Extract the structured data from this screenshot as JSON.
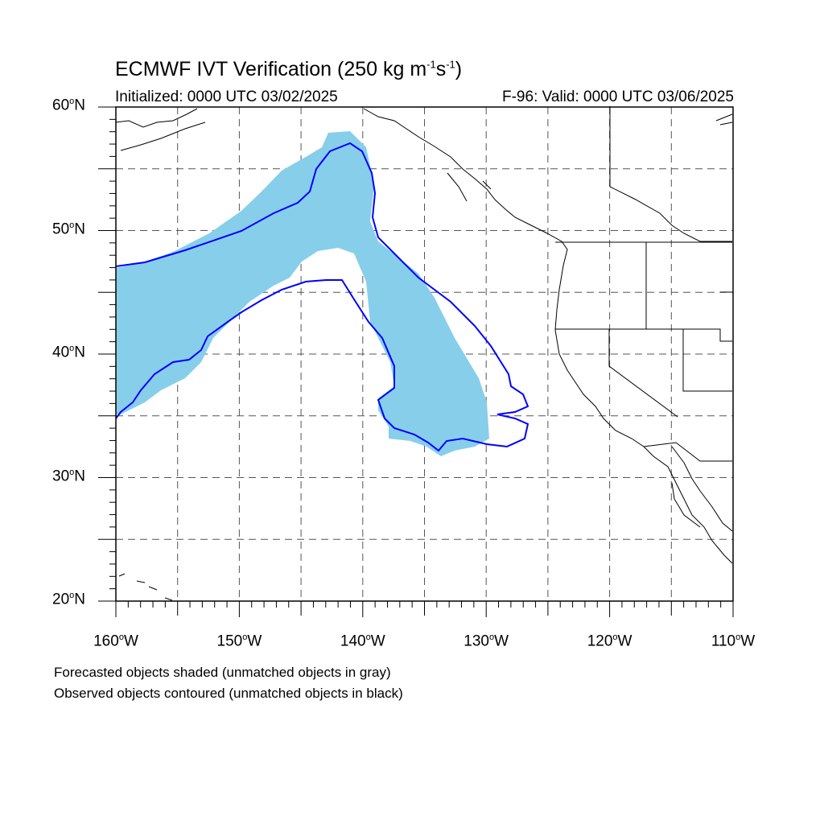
{
  "title": {
    "main": "ECMWF IVT Verification (250 kg m",
    "sup1": "-1",
    "mid": "s",
    "sup2": "-1",
    "end": ")"
  },
  "subtitle_left": "Initialized: 0000 UTC 03/02/2025",
  "subtitle_right": "F-96: Valid: 0000 UTC 03/06/2025",
  "map": {
    "lon_range": [
      -160,
      -110
    ],
    "lat_range": [
      20,
      60
    ],
    "lat_labels": [
      {
        "lat": 60,
        "text": "60",
        "suffix": "N"
      },
      {
        "lat": 50,
        "text": "50",
        "suffix": "N"
      },
      {
        "lat": 40,
        "text": "40",
        "suffix": "N"
      },
      {
        "lat": 30,
        "text": "30",
        "suffix": "N"
      },
      {
        "lat": 20,
        "text": "20",
        "suffix": "N"
      }
    ],
    "lon_labels": [
      {
        "lon": -160,
        "text": "160",
        "suffix": "W"
      },
      {
        "lon": -150,
        "text": "150",
        "suffix": "W"
      },
      {
        "lon": -140,
        "text": "140",
        "suffix": "W"
      },
      {
        "lon": -130,
        "text": "130",
        "suffix": "W"
      },
      {
        "lon": -120,
        "text": "120",
        "suffix": "W"
      },
      {
        "lon": -110,
        "text": "110",
        "suffix": "W"
      }
    ],
    "grid_lons": [
      -155,
      -150,
      -145,
      -140,
      -135,
      -130,
      -125,
      -120,
      -115
    ],
    "grid_lats": [
      25,
      30,
      35,
      40,
      45,
      50,
      55
    ],
    "shade_color": "#87ceeb",
    "contour_color": "#0000ff"
  },
  "notes": [
    "Forecasted objects shaded (unmatched objects in gray)",
    "Observed objects contoured (unmatched objects in black)"
  ]
}
